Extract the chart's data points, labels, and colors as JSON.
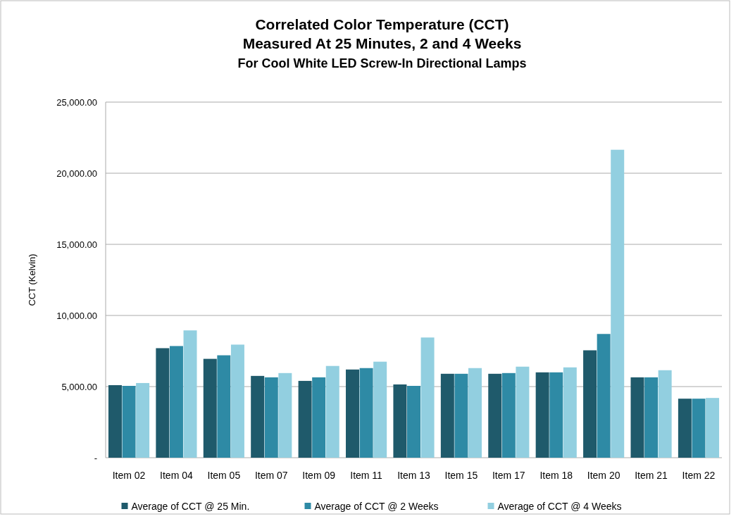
{
  "chart_data": {
    "type": "bar",
    "title": "Correlated Color Temperature (CCT)\nMeasured At  25 Minutes, 2 and 4 Weeks",
    "subtitle": "For  Cool White LED Screw-In Directional Lamps",
    "ylabel": "CCT (Kelvin)",
    "categories": [
      "Item 02",
      "Item 04",
      "Item 05",
      "Item 07",
      "Item 09",
      "Item 11",
      "Item 13",
      "Item 15",
      "Item 17",
      "Item 18",
      "Item 20",
      "Item 21",
      "Item 22"
    ],
    "series": [
      {
        "name": "Average of CCT @ 25 Min.",
        "color": "#1f5a6b",
        "values": [
          5100,
          7700,
          6950,
          5750,
          5400,
          6200,
          5150,
          5900,
          5900,
          6000,
          7550,
          5650,
          4150
        ]
      },
      {
        "name": "Average of CCT @ 2 Weeks",
        "color": "#2e8aa5",
        "values": [
          5050,
          7850,
          7200,
          5650,
          5650,
          6300,
          5050,
          5900,
          5950,
          6000,
          8700,
          5650,
          4150
        ]
      },
      {
        "name": "Average of CCT @ 4 Weeks",
        "color": "#92cfe0",
        "values": [
          5250,
          8950,
          7950,
          5950,
          6450,
          6750,
          8450,
          6300,
          6400,
          6350,
          21650,
          6150,
          4200
        ]
      }
    ],
    "ylim": [
      0,
      25000
    ],
    "yticks": [
      {
        "value": 0,
        "label": "-"
      },
      {
        "value": 5000,
        "label": "5,000.00"
      },
      {
        "value": 10000,
        "label": "10,000.00"
      },
      {
        "value": 15000,
        "label": "15,000.00"
      },
      {
        "value": 20000,
        "label": "20,000.00"
      },
      {
        "value": 25000,
        "label": "25,000.00"
      }
    ],
    "grid": "y",
    "legend": "bottom"
  }
}
